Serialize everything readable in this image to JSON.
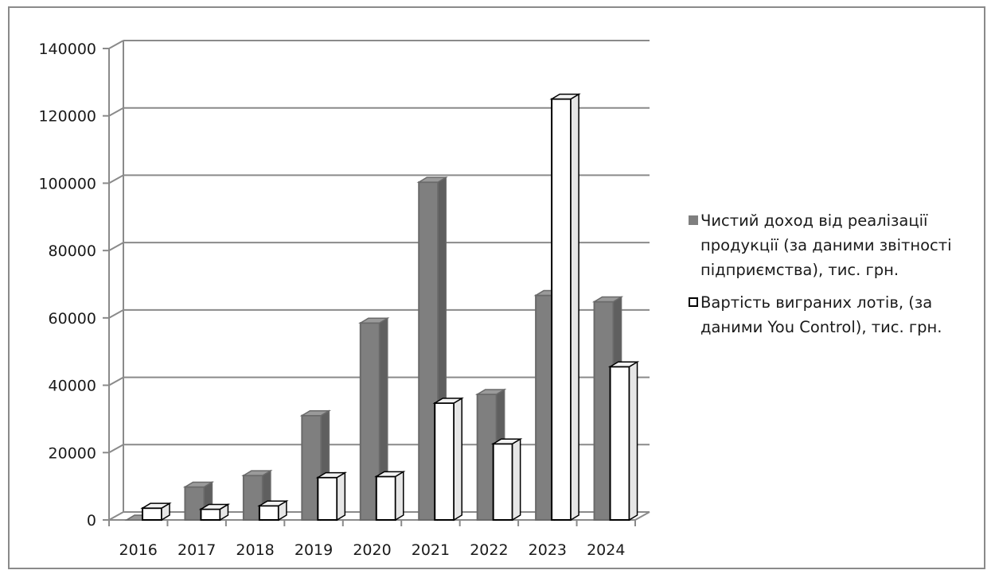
{
  "chart_data": {
    "type": "bar",
    "categories": [
      "2016",
      "2017",
      "2018",
      "2019",
      "2020",
      "2021",
      "2022",
      "2023",
      "2024"
    ],
    "series": [
      {
        "name": "Чистий доход від реалізації продукції (за даними звітності підприємства), тис. грн.",
        "color": "#7f7f7f",
        "values": [
          0,
          9800,
          13200,
          31000,
          58500,
          100300,
          37300,
          66700,
          64800
        ]
      },
      {
        "name": "Вартість виграних лотів, (за даними You Control), тис. грн.",
        "color": "#ffffff",
        "values": [
          3500,
          3200,
          4200,
          12600,
          12900,
          34700,
          22600,
          125000,
          45500
        ]
      }
    ],
    "ylim": [
      0,
      140000
    ],
    "yticks": [
      "0",
      "20000",
      "40000",
      "60000",
      "80000",
      "100000",
      "120000",
      "140000"
    ],
    "grid": true,
    "style": "3d",
    "legend_position": "right"
  }
}
